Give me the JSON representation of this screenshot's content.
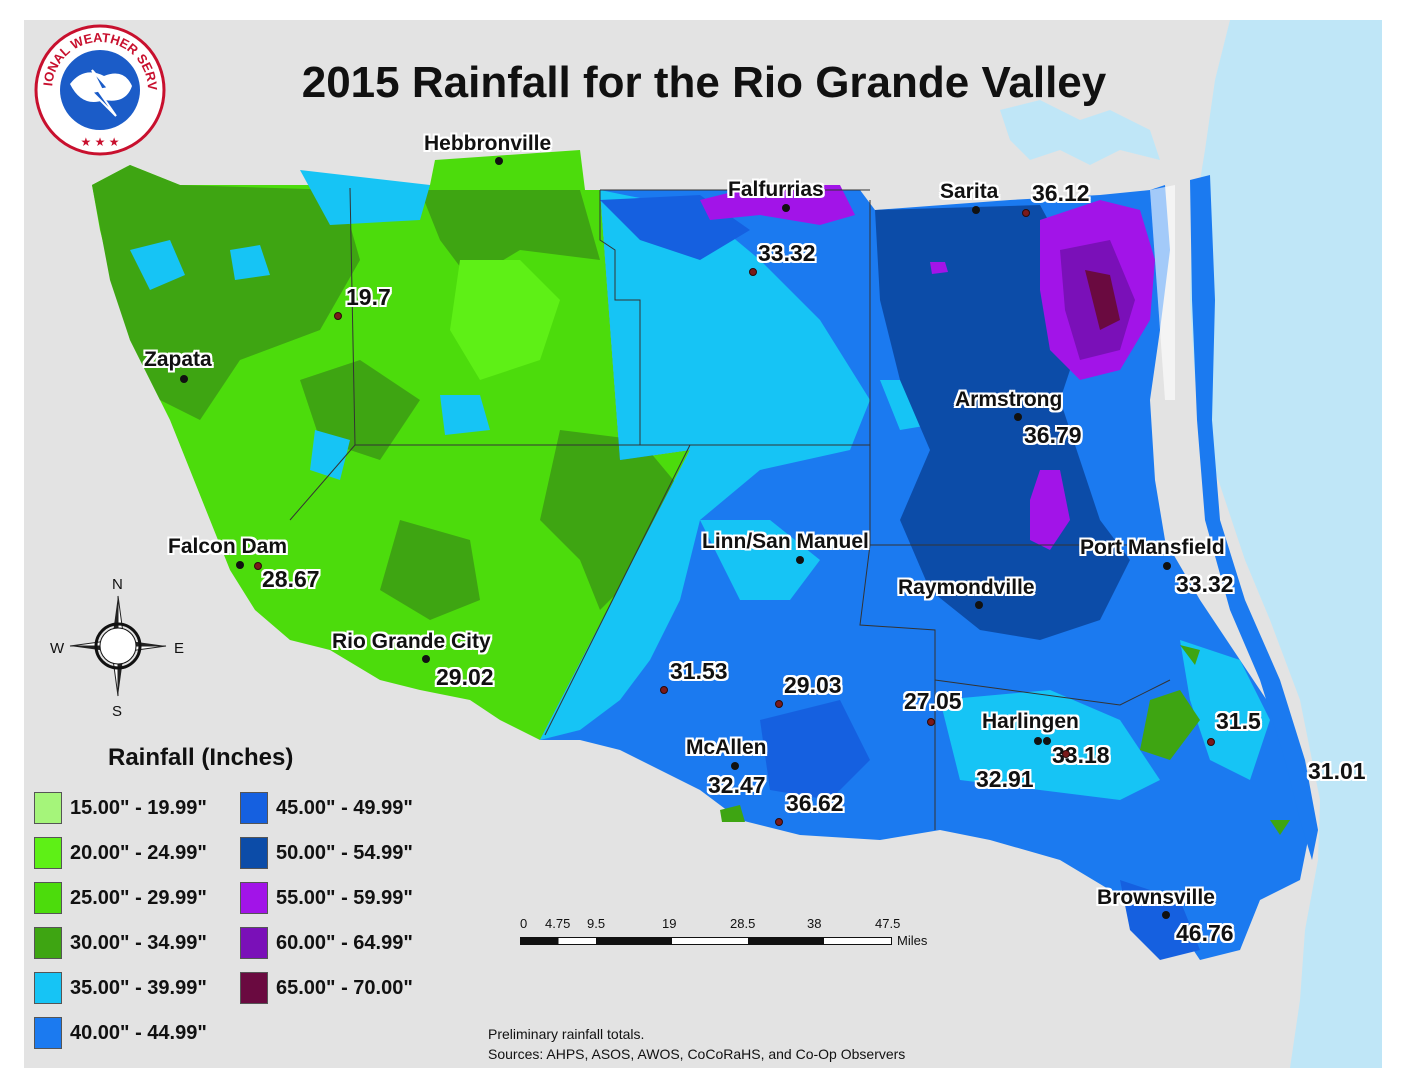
{
  "title": "2015 Rainfall for the Rio Grande Valley",
  "logo": {
    "text": "NATIONAL WEATHER SERVICE"
  },
  "cities": [
    {
      "name": "Hebbronville"
    },
    {
      "name": "Falfurrias"
    },
    {
      "name": "Sarita"
    },
    {
      "name": "Zapata"
    },
    {
      "name": "Armstrong"
    },
    {
      "name": "Falcon Dam"
    },
    {
      "name": "Linn/San Manuel"
    },
    {
      "name": "Port Mansfield"
    },
    {
      "name": "Raymondville"
    },
    {
      "name": "Rio Grande City"
    },
    {
      "name": "Harlingen"
    },
    {
      "name": "McAllen"
    },
    {
      "name": "Brownsville"
    }
  ],
  "rainfall_values": [
    "36.12",
    "33.32",
    "19.7",
    "36.79",
    "28.67",
    "33.32",
    "29.02",
    "31.53",
    "29.03",
    "27.05",
    "31.5",
    "33.18",
    "32.91",
    "32.47",
    "36.62",
    "31.01",
    "46.76"
  ],
  "compass": {
    "n": "N",
    "s": "S",
    "e": "E",
    "w": "W"
  },
  "legend": {
    "title": "Rainfall (Inches)",
    "items": [
      {
        "label": "15.00\" - 19.99\"",
        "color": "#a5f57a"
      },
      {
        "label": "20.00\" - 24.99\"",
        "color": "#5ef016"
      },
      {
        "label": "25.00\" - 29.99\"",
        "color": "#4cdc0c"
      },
      {
        "label": "30.00\" - 34.99\"",
        "color": "#3ea512"
      },
      {
        "label": "35.00\" - 39.99\"",
        "color": "#16c4f5"
      },
      {
        "label": "40.00\" - 44.99\"",
        "color": "#1b7af0"
      },
      {
        "label": "45.00\" - 49.99\"",
        "color": "#1560e0"
      },
      {
        "label": "50.00\" - 54.99\"",
        "color": "#0c4ca8"
      },
      {
        "label": "55.00\" - 59.99\"",
        "color": "#a214e8"
      },
      {
        "label": "60.00\" - 64.99\"",
        "color": "#7a10b8"
      },
      {
        "label": "65.00\" - 70.00\"",
        "color": "#6a0a40"
      }
    ]
  },
  "scale": {
    "ticks": [
      "0",
      "4.75",
      "9.5",
      "19",
      "28.5",
      "38",
      "47.5"
    ],
    "unit": "Miles"
  },
  "notes": {
    "line1": "Preliminary rainfall totals.",
    "line2": "Sources: AHPS, ASOS, AWOS, CoCoRaHS, and Co-Op Observers"
  },
  "colors": {
    "water": "#bfe6f7",
    "land": "#e3e3e3"
  }
}
